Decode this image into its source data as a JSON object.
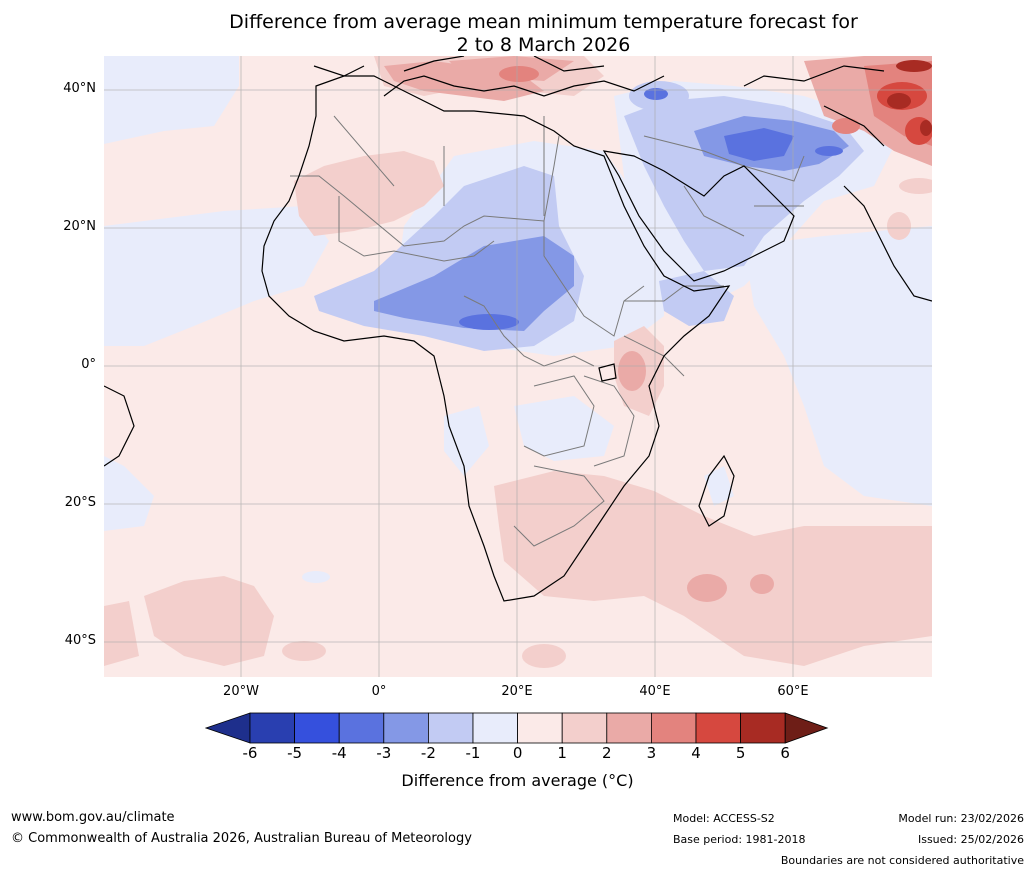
{
  "title": {
    "line1": "Difference from average mean minimum temperature forecast for",
    "line2": "2 to 8 March 2026"
  },
  "map": {
    "lat_labels": [
      "40°N",
      "20°N",
      "0°",
      "20°S",
      "40°S"
    ],
    "lon_labels": [
      "20°W",
      "0°",
      "20°E",
      "40°E",
      "60°E"
    ]
  },
  "colorbar": {
    "ticks": [
      "-6",
      "-5",
      "-4",
      "-3",
      "-2",
      "-1",
      "0",
      "1",
      "2",
      "3",
      "4",
      "5",
      "6"
    ],
    "colors": [
      "#1e2f8c",
      "#293fb0",
      "#3550dd",
      "#5a72df",
      "#8498e6",
      "#c2cbf3",
      "#e8ecfb",
      "#fbeae8",
      "#f3cfcc",
      "#eaaaa7",
      "#e3837e",
      "#d6483f",
      "#a82b23",
      "#6e1e17"
    ],
    "label": "Difference from average (°C)"
  },
  "footer": {
    "website": "www.bom.gov.au/climate",
    "copyright": "© Commonwealth of Australia 2026, Australian Bureau of Meteorology",
    "model": "Model: ACCESS-S2",
    "base_period": "Base period: 1981-2018",
    "model_run": "Model run: 23/02/2026",
    "issued": "Issued: 25/02/2026",
    "disclaimer": "Boundaries are not considered authoritative"
  }
}
